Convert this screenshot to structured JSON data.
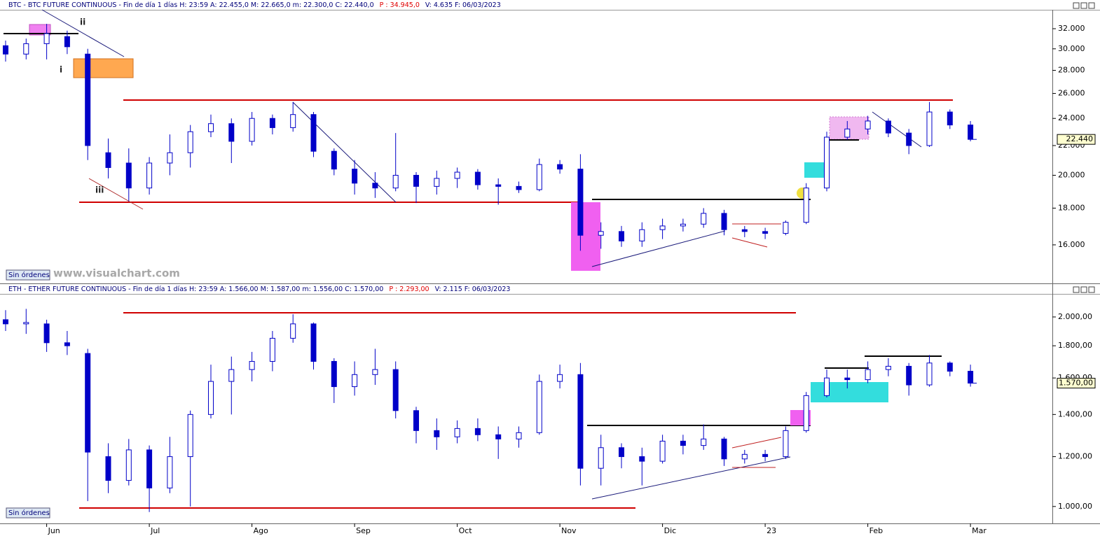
{
  "chart_data": [
    {
      "type": "candlestick",
      "header": "BTC - BTC FUTURE CONTINUOUS - Fin de día 1 días  H: 23:59  A: 22.455,0  M: 22.665,0  m: 22.300,0  C: 22.440,0",
      "header_p": "P : 34.945,0",
      "header_tail": "V: 4.635  F: 06/03/2023",
      "color": "#0000c8",
      "log_scale": true,
      "grid": false,
      "ylim": [
        14140,
        34000
      ],
      "yticks": [
        {
          "value": 16000,
          "label": "16.000"
        },
        {
          "value": 18000,
          "label": "18.000"
        },
        {
          "value": 20000,
          "label": "20.000"
        },
        {
          "value": 22000,
          "label": "22.000"
        },
        {
          "value": 24000,
          "label": "24.000"
        },
        {
          "value": 26000,
          "label": "26.000"
        },
        {
          "value": 28000,
          "label": "28.000"
        },
        {
          "value": 30000,
          "label": "30.000"
        },
        {
          "value": 32000,
          "label": "32.000"
        }
      ],
      "open": [
        30300,
        29500,
        30500,
        31200,
        29500,
        21500,
        20800,
        19200,
        20800,
        21500,
        23000,
        23600,
        22300,
        24000,
        23300,
        24300,
        21600,
        20400,
        19500,
        19200,
        20000,
        19300,
        19800,
        20200,
        19400,
        19300,
        19100,
        20700,
        20400,
        16500,
        16700,
        16200,
        16800,
        17000,
        17100,
        17700,
        16800,
        16700,
        16600,
        17200,
        19200,
        22600,
        23200,
        23800,
        22900,
        22000,
        24500,
        23500
      ],
      "high": [
        30800,
        31000,
        32500,
        31800,
        30000,
        22500,
        21800,
        21200,
        22800,
        23500,
        24300,
        24000,
        24500,
        24300,
        25300,
        24500,
        21800,
        21000,
        20200,
        22900,
        20200,
        20300,
        20500,
        20400,
        19800,
        19600,
        21100,
        21000,
        21400,
        17200,
        17000,
        17200,
        17400,
        17400,
        18000,
        17900,
        17000,
        16900,
        17300,
        19500,
        23000,
        23800,
        24200,
        24000,
        23200,
        25300,
        24700,
        23800
      ],
      "low": [
        28800,
        29000,
        29000,
        29500,
        21000,
        19800,
        18400,
        18800,
        20000,
        20500,
        22600,
        20800,
        22000,
        22800,
        23000,
        21200,
        20000,
        18800,
        18600,
        19000,
        18300,
        18800,
        19200,
        19100,
        18200,
        18900,
        19000,
        20100,
        15700,
        15800,
        15900,
        15900,
        16300,
        16700,
        16900,
        16500,
        16400,
        16300,
        16500,
        17100,
        19000,
        22400,
        22800,
        22600,
        21400,
        21900,
        23200,
        22300
      ],
      "close": [
        29500,
        30500,
        31500,
        30200,
        22000,
        20500,
        19200,
        20800,
        21500,
        23000,
        23600,
        22300,
        24000,
        23300,
        24300,
        21600,
        20400,
        19500,
        19200,
        20000,
        19300,
        19800,
        20200,
        19400,
        19300,
        19100,
        20700,
        20400,
        16500,
        16700,
        16200,
        16800,
        17000,
        17100,
        17700,
        16800,
        16700,
        16600,
        17200,
        19200,
        22600,
        23200,
        23800,
        22900,
        22000,
        24500,
        23500,
        22440
      ],
      "last_price_label": "22.440",
      "wave_labels": [
        "ii",
        "i",
        "iii"
      ],
      "status": "Sin órdenes",
      "watermark": "www.visualchart.com"
    },
    {
      "type": "candlestick",
      "header": "ETH - ETHER FUTURE CONTINUOUS - Fin de día 1 días  H: 23:59  A: 1.566,00  M: 1.587,00  m: 1.556,00  C: 1.570,00",
      "header_p": "P : 2.293,00",
      "header_tail": "V: 2.115  F: 06/03/2023",
      "color": "#0000c8",
      "log_scale": true,
      "grid": false,
      "ylim": [
        940,
        2176
      ],
      "yticks": [
        {
          "value": 1000,
          "label": "1.000,00"
        },
        {
          "value": 1200,
          "label": "1.200,00"
        },
        {
          "value": 1400,
          "label": "1.400,00"
        },
        {
          "value": 1600,
          "label": "1.600,00"
        },
        {
          "value": 1800,
          "label": "1.800,00"
        },
        {
          "value": 2000,
          "label": "2.000,00"
        }
      ],
      "categories": [
        null,
        null,
        "Jun",
        null,
        null,
        null,
        null,
        "Jul",
        null,
        null,
        null,
        null,
        "Ago",
        null,
        null,
        null,
        null,
        "Sep",
        null,
        null,
        null,
        null,
        "Oct",
        null,
        null,
        null,
        null,
        "Nov",
        null,
        null,
        null,
        null,
        "Dic",
        null,
        null,
        null,
        null,
        "23",
        null,
        null,
        null,
        null,
        "Feb",
        null,
        null,
        null,
        null,
        "Mar"
      ],
      "open": [
        1980,
        1950,
        1950,
        1820,
        1750,
        1200,
        1100,
        1230,
        1070,
        1200,
        1400,
        1580,
        1650,
        1700,
        1850,
        1950,
        1700,
        1550,
        1620,
        1650,
        1420,
        1320,
        1290,
        1330,
        1300,
        1280,
        1310,
        1580,
        1620,
        1150,
        1240,
        1200,
        1180,
        1270,
        1250,
        1280,
        1190,
        1210,
        1200,
        1320,
        1500,
        1600,
        1590,
        1650,
        1670,
        1560,
        1690,
        1640
      ],
      "high": [
        2050,
        2060,
        1980,
        1900,
        1780,
        1260,
        1280,
        1250,
        1290,
        1420,
        1680,
        1730,
        1760,
        1900,
        2020,
        1960,
        1720,
        1700,
        1780,
        1700,
        1440,
        1380,
        1370,
        1380,
        1340,
        1340,
        1620,
        1680,
        1690,
        1300,
        1260,
        1240,
        1300,
        1300,
        1350,
        1290,
        1230,
        1230,
        1340,
        1520,
        1650,
        1650,
        1700,
        1720,
        1690,
        1740,
        1700,
        1680
      ],
      "low": [
        1900,
        1880,
        1760,
        1740,
        1020,
        1050,
        1080,
        980,
        1050,
        1000,
        1380,
        1400,
        1580,
        1640,
        1820,
        1650,
        1460,
        1500,
        1560,
        1380,
        1260,
        1230,
        1260,
        1270,
        1190,
        1240,
        1300,
        1540,
        1080,
        1080,
        1150,
        1080,
        1170,
        1210,
        1230,
        1160,
        1170,
        1180,
        1190,
        1310,
        1490,
        1540,
        1570,
        1610,
        1500,
        1550,
        1610,
        1550
      ],
      "close": [
        1950,
        1960,
        1820,
        1800,
        1220,
        1100,
        1230,
        1070,
        1200,
        1400,
        1580,
        1650,
        1700,
        1850,
        1950,
        1700,
        1550,
        1620,
        1650,
        1420,
        1320,
        1290,
        1330,
        1300,
        1280,
        1310,
        1580,
        1620,
        1150,
        1240,
        1200,
        1180,
        1270,
        1250,
        1280,
        1190,
        1210,
        1200,
        1320,
        1500,
        1600,
        1590,
        1650,
        1670,
        1560,
        1690,
        1640,
        1570
      ],
      "last_price_label": "1.570,00",
      "status": "Sin órdenes"
    }
  ]
}
